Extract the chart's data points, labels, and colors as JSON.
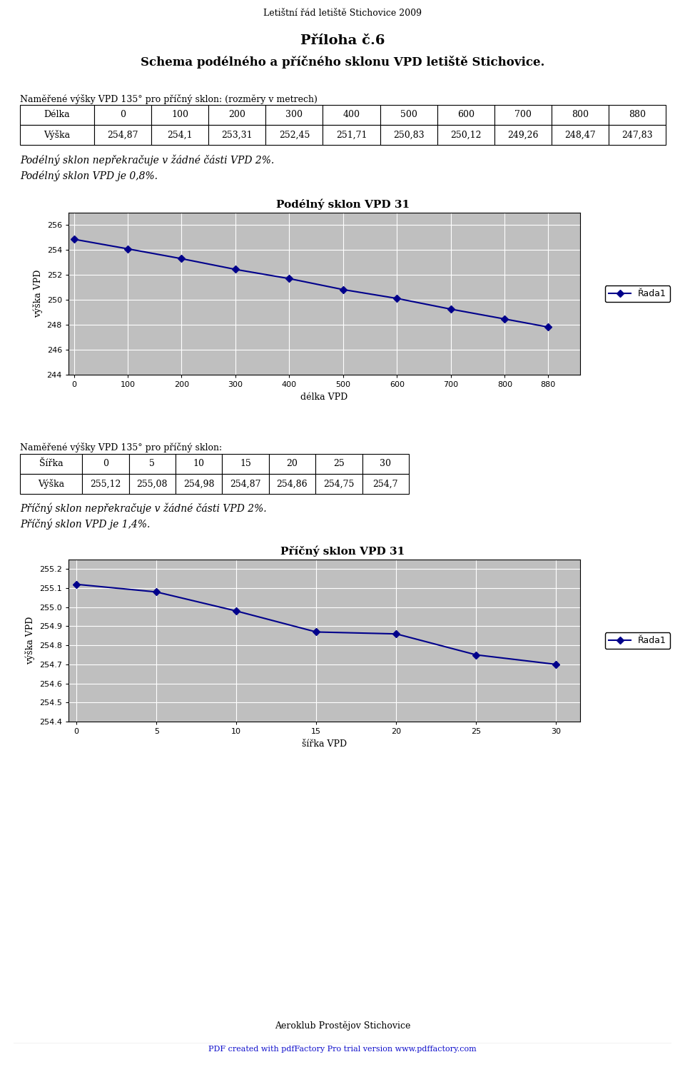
{
  "header_title": "Letištní řád letiště Stichovice 2009",
  "main_title1": "Příloha č.6",
  "main_title2": "Schema podélného a příčného sklonu VPD letiště Stichovice.",
  "table1_label": "Naměřené výšky VPD 135° pro příčný sklon: (rozměry v metrech)",
  "table1_row1": [
    "Délka",
    "0",
    "100",
    "200",
    "300",
    "400",
    "500",
    "600",
    "700",
    "800",
    "880"
  ],
  "table1_row2": [
    "Výška",
    "254,87",
    "254,1",
    "253,31",
    "252,45",
    "251,71",
    "250,83",
    "250,12",
    "249,26",
    "248,47",
    "247,83"
  ],
  "text1_line1": "Podélný sklon nepřekračuje v žádné části VPD 2%.",
  "text1_line2": "Podélný sklon VPD je 0,8%.",
  "chart1_title": "Podélný sklon VPD 31",
  "chart1_xlabel": "délka VPD",
  "chart1_ylabel": "výška VPD",
  "chart1_x": [
    0,
    100,
    200,
    300,
    400,
    500,
    600,
    700,
    800,
    880
  ],
  "chart1_y": [
    254.87,
    254.1,
    253.31,
    252.45,
    251.71,
    250.83,
    250.12,
    249.26,
    248.47,
    247.83
  ],
  "chart1_ylim": [
    244,
    257
  ],
  "chart1_yticks": [
    244,
    246,
    248,
    250,
    252,
    254,
    256
  ],
  "chart1_xticks": [
    0,
    100,
    200,
    300,
    400,
    500,
    600,
    700,
    800,
    880
  ],
  "chart1_legend": "Řada1",
  "table2_label": "Naměřené výšky VPD 135° pro příčný sklon:",
  "table2_row1": [
    "Šířka",
    "0",
    "5",
    "10",
    "15",
    "20",
    "25",
    "30"
  ],
  "table2_row2": [
    "Výška",
    "255,12",
    "255,08",
    "254,98",
    "254,87",
    "254,86",
    "254,75",
    "254,7"
  ],
  "text2_line1": "Příčný sklon nepřekračuje v žádné části VPD 2%.",
  "text2_line2": "Příčný sklon VPD je 1,4%.",
  "chart2_title": "Příčný sklon VPD 31",
  "chart2_xlabel": "šířka VPD",
  "chart2_ylabel": "výška VPD",
  "chart2_x": [
    0,
    5,
    10,
    15,
    20,
    25,
    30
  ],
  "chart2_y": [
    255.12,
    255.08,
    254.98,
    254.87,
    254.86,
    254.75,
    254.7
  ],
  "chart2_ylim": [
    254.4,
    255.25
  ],
  "chart2_yticks": [
    254.4,
    254.5,
    254.6,
    254.7,
    254.8,
    254.9,
    255.0,
    255.1,
    255.2
  ],
  "chart2_xticks": [
    0,
    5,
    10,
    15,
    20,
    25,
    30
  ],
  "chart2_legend": "Řada1",
  "footer1": "Aeroklub Prostějov Stichovice",
  "footer2": "PDF created with pdfFactory Pro trial version www.pdffactory.com",
  "line_color": "#00008B",
  "marker": "D",
  "chart_bg": "#BFBFBF",
  "border_color": "#808080"
}
